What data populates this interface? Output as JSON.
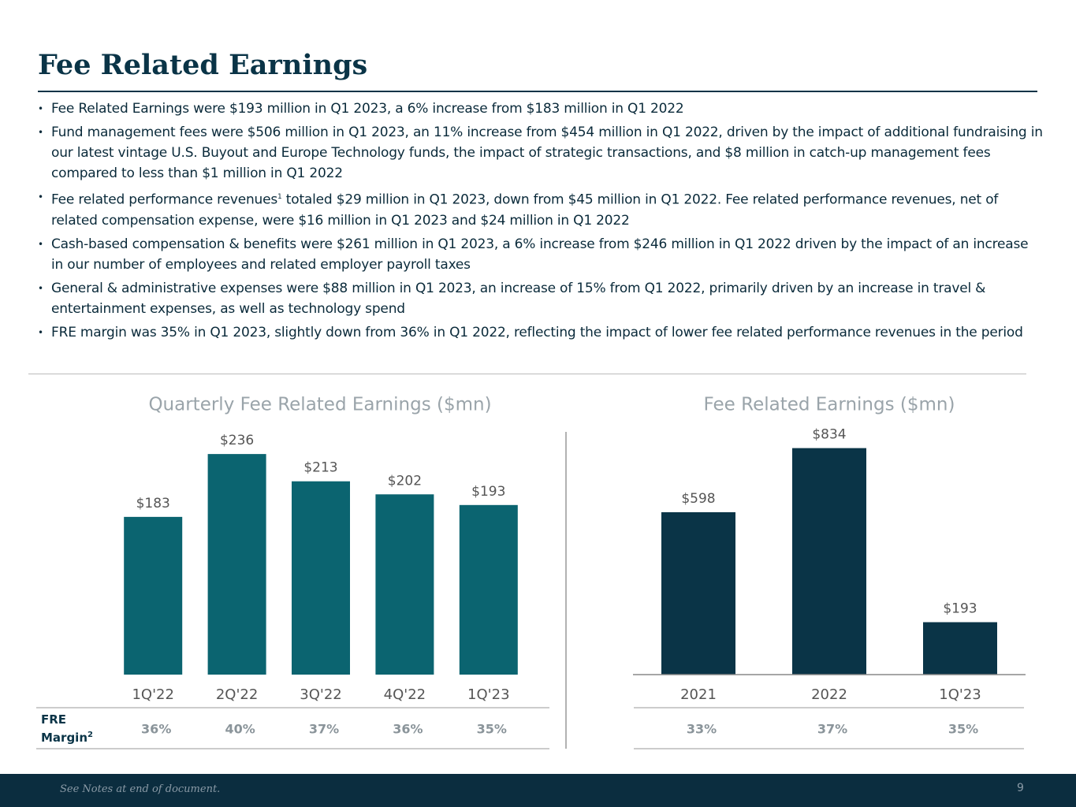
{
  "title": "Fee Related Earnings",
  "bullets": [
    "Fee Related Earnings were $193 million in Q1 2023, a 6% increase from $183 million in Q1 2022",
    "Fund management fees were $506 million in Q1 2023, an 11% increase from $454 million in Q1 2022, driven by the impact of additional fundraising in our latest vintage U.S. Buyout and Europe Technology funds, the impact of strategic transactions, and $8 million in catch-up management fees compared to less than $1 million in Q1 2022",
    {
      "before": "Fee related performance revenues",
      "sup": "1",
      "after": " totaled $29 million in Q1 2023, down from $45 million in Q1 2022. Fee related performance revenues, net of related compensation expense, were $16 million in Q1 2023 and $24 million in Q1 2022"
    },
    "Cash-based compensation & benefits were $261 million in Q1 2023, a 6% increase from $246 million in Q1 2022 driven by the impact of an increase in our number of employees and related employer payroll taxes",
    "General & administrative expenses were $88 million in Q1 2023, an increase of 15% from Q1 2022, primarily driven by an increase in travel & entertainment expenses, as well as technology spend",
    "FRE margin was 35% in Q1 2023, slightly down from 36% in Q1 2022, reflecting the impact of lower fee related performance revenues in the period"
  ],
  "chart_data": [
    {
      "type": "bar",
      "title": "Quarterly Fee Related Earnings ($mn)",
      "categories": [
        "1Q'22",
        "2Q'22",
        "3Q'22",
        "4Q'22",
        "1Q'23"
      ],
      "values": [
        183,
        236,
        213,
        202,
        193
      ],
      "value_labels": [
        "$183",
        "$236",
        "$213",
        "$202",
        "$193"
      ],
      "color": "#0b6470",
      "ylim": [
        50,
        260
      ],
      "axis_line": false,
      "margin_label": "FRE Margin",
      "margin_note": "2",
      "margins": [
        "36%",
        "40%",
        "37%",
        "36%",
        "35%"
      ]
    },
    {
      "type": "bar",
      "title": "Fee Related Earnings ($mn)",
      "categories": [
        "2021",
        "2022",
        "1Q'23"
      ],
      "values": [
        598,
        834,
        193
      ],
      "value_labels": [
        "$598",
        "$834",
        "$193"
      ],
      "color": "#0a3447",
      "ylim": [
        0,
        917
      ],
      "axis_line": true,
      "margins": [
        "33%",
        "37%",
        "35%"
      ]
    }
  ],
  "footnote": "See Notes at end of document.",
  "page_number": "9"
}
